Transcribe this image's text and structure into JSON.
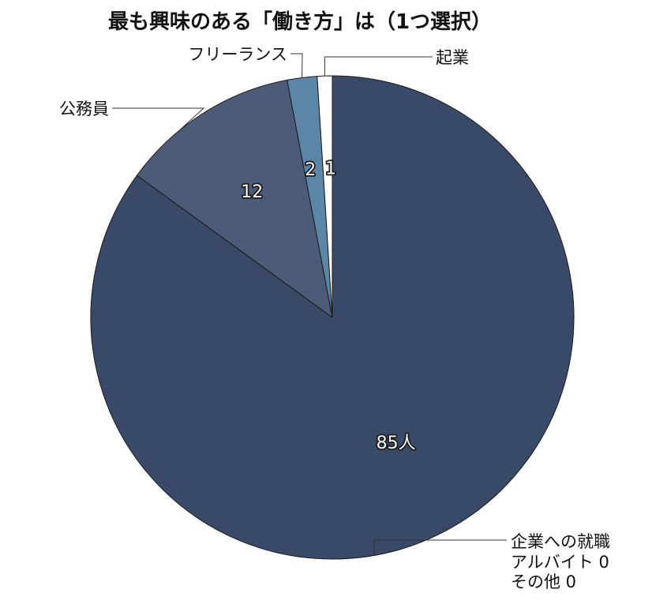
{
  "chart_data": {
    "type": "pie",
    "title": "最も興味のある「働き方」は（1つ選択）",
    "slices": [
      {
        "label": "企業への就職",
        "value": 85,
        "value_label": "85人",
        "color": "#384a68"
      },
      {
        "label": "公務員",
        "value": 12,
        "value_label": "12",
        "color": "#4c5c78"
      },
      {
        "label": "フリーランス",
        "value": 2,
        "value_label": "2",
        "color": "#5b86a8"
      },
      {
        "label": "起業",
        "value": 1,
        "value_label": "1",
        "color": "#ffffff"
      },
      {
        "label": "アルバイト",
        "value": 0,
        "value_label": "0",
        "color": "#384a68"
      },
      {
        "label": "その他",
        "value": 0,
        "value_label": "0",
        "color": "#384a68"
      }
    ]
  }
}
